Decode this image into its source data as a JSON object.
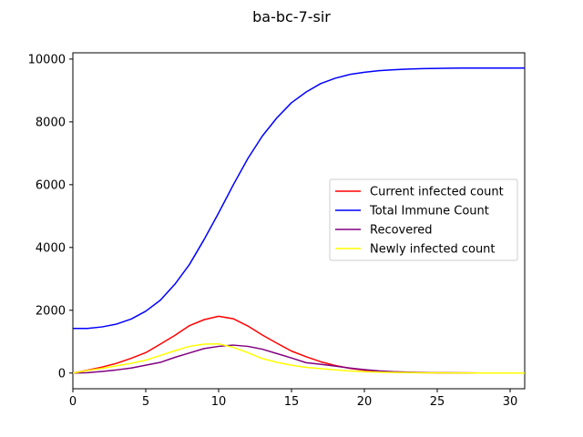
{
  "chart_data": {
    "type": "line",
    "title": "ba-bc-7-sir",
    "xlabel": "",
    "ylabel": "",
    "xlim": [
      0,
      31
    ],
    "ylim": [
      -500,
      10200
    ],
    "x_ticks": [
      "0",
      "5",
      "10",
      "15",
      "20",
      "25",
      "30"
    ],
    "y_ticks": [
      "0",
      "2000",
      "4000",
      "6000",
      "8000",
      "10000"
    ],
    "grid": false,
    "legend_position": "center-right",
    "x": [
      0,
      1,
      2,
      3,
      4,
      5,
      6,
      7,
      8,
      9,
      10,
      11,
      12,
      13,
      14,
      15,
      16,
      17,
      18,
      19,
      20,
      21,
      22,
      23,
      24,
      25,
      26,
      27,
      28,
      29,
      30,
      31
    ],
    "series": [
      {
        "name": "Current infected count",
        "color": "#ff0000",
        "values": [
          0,
          90,
          190,
          310,
          470,
          650,
          920,
          1200,
          1510,
          1700,
          1810,
          1730,
          1500,
          1210,
          950,
          700,
          520,
          360,
          240,
          150,
          90,
          55,
          35,
          20,
          12,
          8,
          5,
          3,
          2,
          1,
          1,
          1
        ]
      },
      {
        "name": "Total Immune Count",
        "color": "#0000ff",
        "values": [
          1420,
          1420,
          1470,
          1560,
          1720,
          1970,
          2320,
          2830,
          3460,
          4250,
          5100,
          5990,
          6830,
          7550,
          8130,
          8610,
          8950,
          9220,
          9390,
          9510,
          9580,
          9630,
          9660,
          9680,
          9695,
          9705,
          9710,
          9715,
          9715,
          9715,
          9715,
          9715
        ]
      },
      {
        "name": "Recovered",
        "color": "#800080",
        "values": [
          0,
          10,
          50,
          100,
          160,
          250,
          340,
          500,
          640,
          780,
          850,
          890,
          850,
          760,
          620,
          480,
          330,
          280,
          220,
          160,
          110,
          70,
          45,
          30,
          18,
          10,
          6,
          4,
          2,
          1,
          1,
          0
        ]
      },
      {
        "name": "Newly infected count",
        "color": "#ffff00",
        "values": [
          0,
          80,
          150,
          230,
          310,
          410,
          560,
          710,
          850,
          920,
          930,
          820,
          650,
          460,
          340,
          250,
          180,
          140,
          100,
          65,
          45,
          30,
          20,
          14,
          9,
          6,
          4,
          3,
          2,
          1,
          1,
          0
        ]
      }
    ]
  }
}
